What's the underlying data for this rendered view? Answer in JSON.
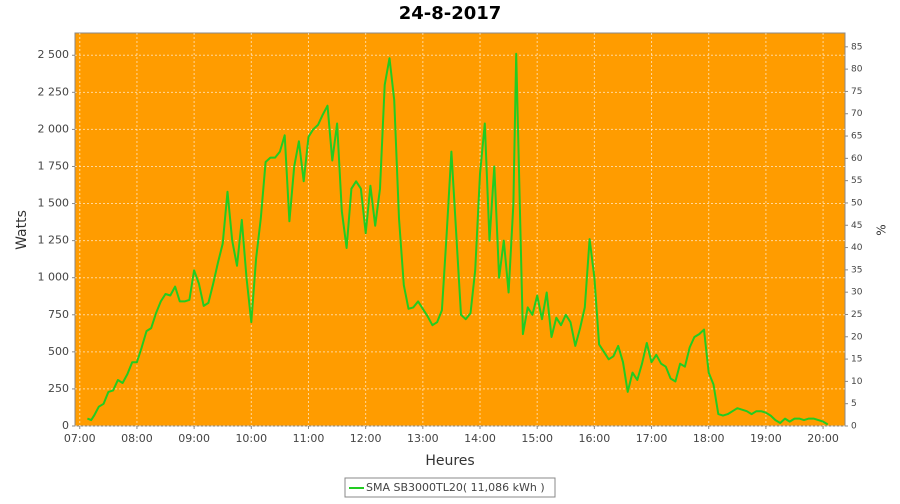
{
  "chart_data": {
    "type": "line",
    "title": "24-8-2017",
    "x_label": "Heures",
    "y_label": "Watts",
    "y2_label": "%",
    "background": "#ff9c00",
    "grid": true,
    "x": [
      "07:08",
      "07:12",
      "07:15",
      "07:20",
      "07:25",
      "07:30",
      "07:35",
      "07:40",
      "07:45",
      "07:50",
      "07:55",
      "08:00",
      "08:05",
      "08:10",
      "08:15",
      "08:20",
      "08:25",
      "08:30",
      "08:35",
      "08:40",
      "08:45",
      "08:50",
      "08:55",
      "09:00",
      "09:05",
      "09:10",
      "09:15",
      "09:20",
      "09:25",
      "09:30",
      "09:35",
      "09:40",
      "09:45",
      "09:50",
      "09:55",
      "10:00",
      "10:05",
      "10:10",
      "10:15",
      "10:20",
      "10:25",
      "10:30",
      "10:35",
      "10:40",
      "10:45",
      "10:50",
      "10:55",
      "11:00",
      "11:05",
      "11:10",
      "11:15",
      "11:20",
      "11:25",
      "11:30",
      "11:35",
      "11:40",
      "11:45",
      "11:50",
      "11:55",
      "12:00",
      "12:05",
      "12:10",
      "12:15",
      "12:20",
      "12:25",
      "12:30",
      "12:35",
      "12:40",
      "12:45",
      "12:50",
      "12:55",
      "13:00",
      "13:05",
      "13:10",
      "13:15",
      "13:20",
      "13:25",
      "13:30",
      "13:35",
      "13:40",
      "13:45",
      "13:50",
      "13:55",
      "14:00",
      "14:05",
      "14:10",
      "14:15",
      "14:20",
      "14:25",
      "14:30",
      "14:35",
      "14:38",
      "14:45",
      "14:50",
      "14:55",
      "15:00",
      "15:05",
      "15:10",
      "15:15",
      "15:20",
      "15:25",
      "15:30",
      "15:35",
      "15:40",
      "15:45",
      "15:50",
      "15:55",
      "16:00",
      "16:05",
      "16:10",
      "16:15",
      "16:20",
      "16:25",
      "16:30",
      "16:35",
      "16:40",
      "16:45",
      "16:50",
      "16:55",
      "17:00",
      "17:05",
      "17:10",
      "17:15",
      "17:20",
      "17:25",
      "17:30",
      "17:35",
      "17:40",
      "17:45",
      "17:50",
      "17:55",
      "18:00",
      "18:05",
      "18:10",
      "18:15",
      "18:20",
      "18:25",
      "18:30",
      "18:35",
      "18:40",
      "18:45",
      "18:50",
      "18:55",
      "19:00",
      "19:05",
      "19:10",
      "19:15",
      "19:20",
      "19:25",
      "19:30",
      "19:35",
      "19:40",
      "19:45",
      "19:50",
      "19:55",
      "20:00",
      "20:05"
    ],
    "series": [
      {
        "name": "SMA SB3000TL20( 11,086 kWh )",
        "color": "#22cc22",
        "values": [
          50,
          40,
          70,
          130,
          150,
          230,
          240,
          310,
          290,
          350,
          430,
          430,
          530,
          640,
          660,
          760,
          840,
          890,
          880,
          940,
          840,
          840,
          850,
          1050,
          960,
          810,
          830,
          960,
          1100,
          1230,
          1580,
          1250,
          1080,
          1390,
          1000,
          700,
          1130,
          1400,
          1780,
          1810,
          1810,
          1850,
          1960,
          1380,
          1750,
          1920,
          1650,
          1950,
          2000,
          2030,
          2100,
          2160,
          1790,
          2040,
          1450,
          1200,
          1600,
          1650,
          1600,
          1300,
          1620,
          1350,
          1600,
          2300,
          2480,
          2200,
          1400,
          950,
          790,
          800,
          840,
          790,
          740,
          680,
          700,
          780,
          1300,
          1850,
          1300,
          750,
          720,
          760,
          1050,
          1700,
          2040,
          1250,
          1750,
          1000,
          1250,
          900,
          1500,
          2510,
          620,
          800,
          750,
          880,
          720,
          900,
          600,
          730,
          680,
          750,
          700,
          540,
          660,
          800,
          1260,
          1000,
          550,
          500,
          450,
          470,
          540,
          430,
          230,
          360,
          310,
          420,
          560,
          430,
          480,
          420,
          400,
          320,
          300,
          420,
          400,
          530,
          600,
          620,
          650,
          360,
          280,
          80,
          70,
          80,
          100,
          120,
          110,
          100,
          80,
          100,
          100,
          90,
          70,
          40,
          20,
          50,
          30,
          50,
          50,
          40,
          50,
          50,
          40,
          30,
          10
        ]
      }
    ],
    "xlim": [
      "06:55",
      "20:23"
    ],
    "xticks": [
      "07:00",
      "08:00",
      "09:00",
      "10:00",
      "11:00",
      "12:00",
      "13:00",
      "14:00",
      "15:00",
      "16:00",
      "17:00",
      "18:00",
      "19:00",
      "20:00"
    ],
    "ylim": [
      0,
      2650
    ],
    "yticks": [
      0,
      250,
      500,
      750,
      {
        "value": 1000,
        "label": "1 000"
      },
      {
        "value": 1250,
        "label": "1 250"
      },
      {
        "value": 1500,
        "label": "1 500"
      },
      {
        "value": 1750,
        "label": "1 750"
      },
      {
        "value": 2000,
        "label": "2 000"
      },
      {
        "value": 2250,
        "label": "2 250"
      },
      {
        "value": 2500,
        "label": "2 500"
      }
    ],
    "y2lim": [
      0,
      88.1
    ],
    "y2ticks": [
      0,
      5,
      10,
      15,
      20,
      25,
      30,
      35,
      40,
      45,
      50,
      55,
      60,
      65,
      70,
      75,
      80,
      85
    ]
  }
}
